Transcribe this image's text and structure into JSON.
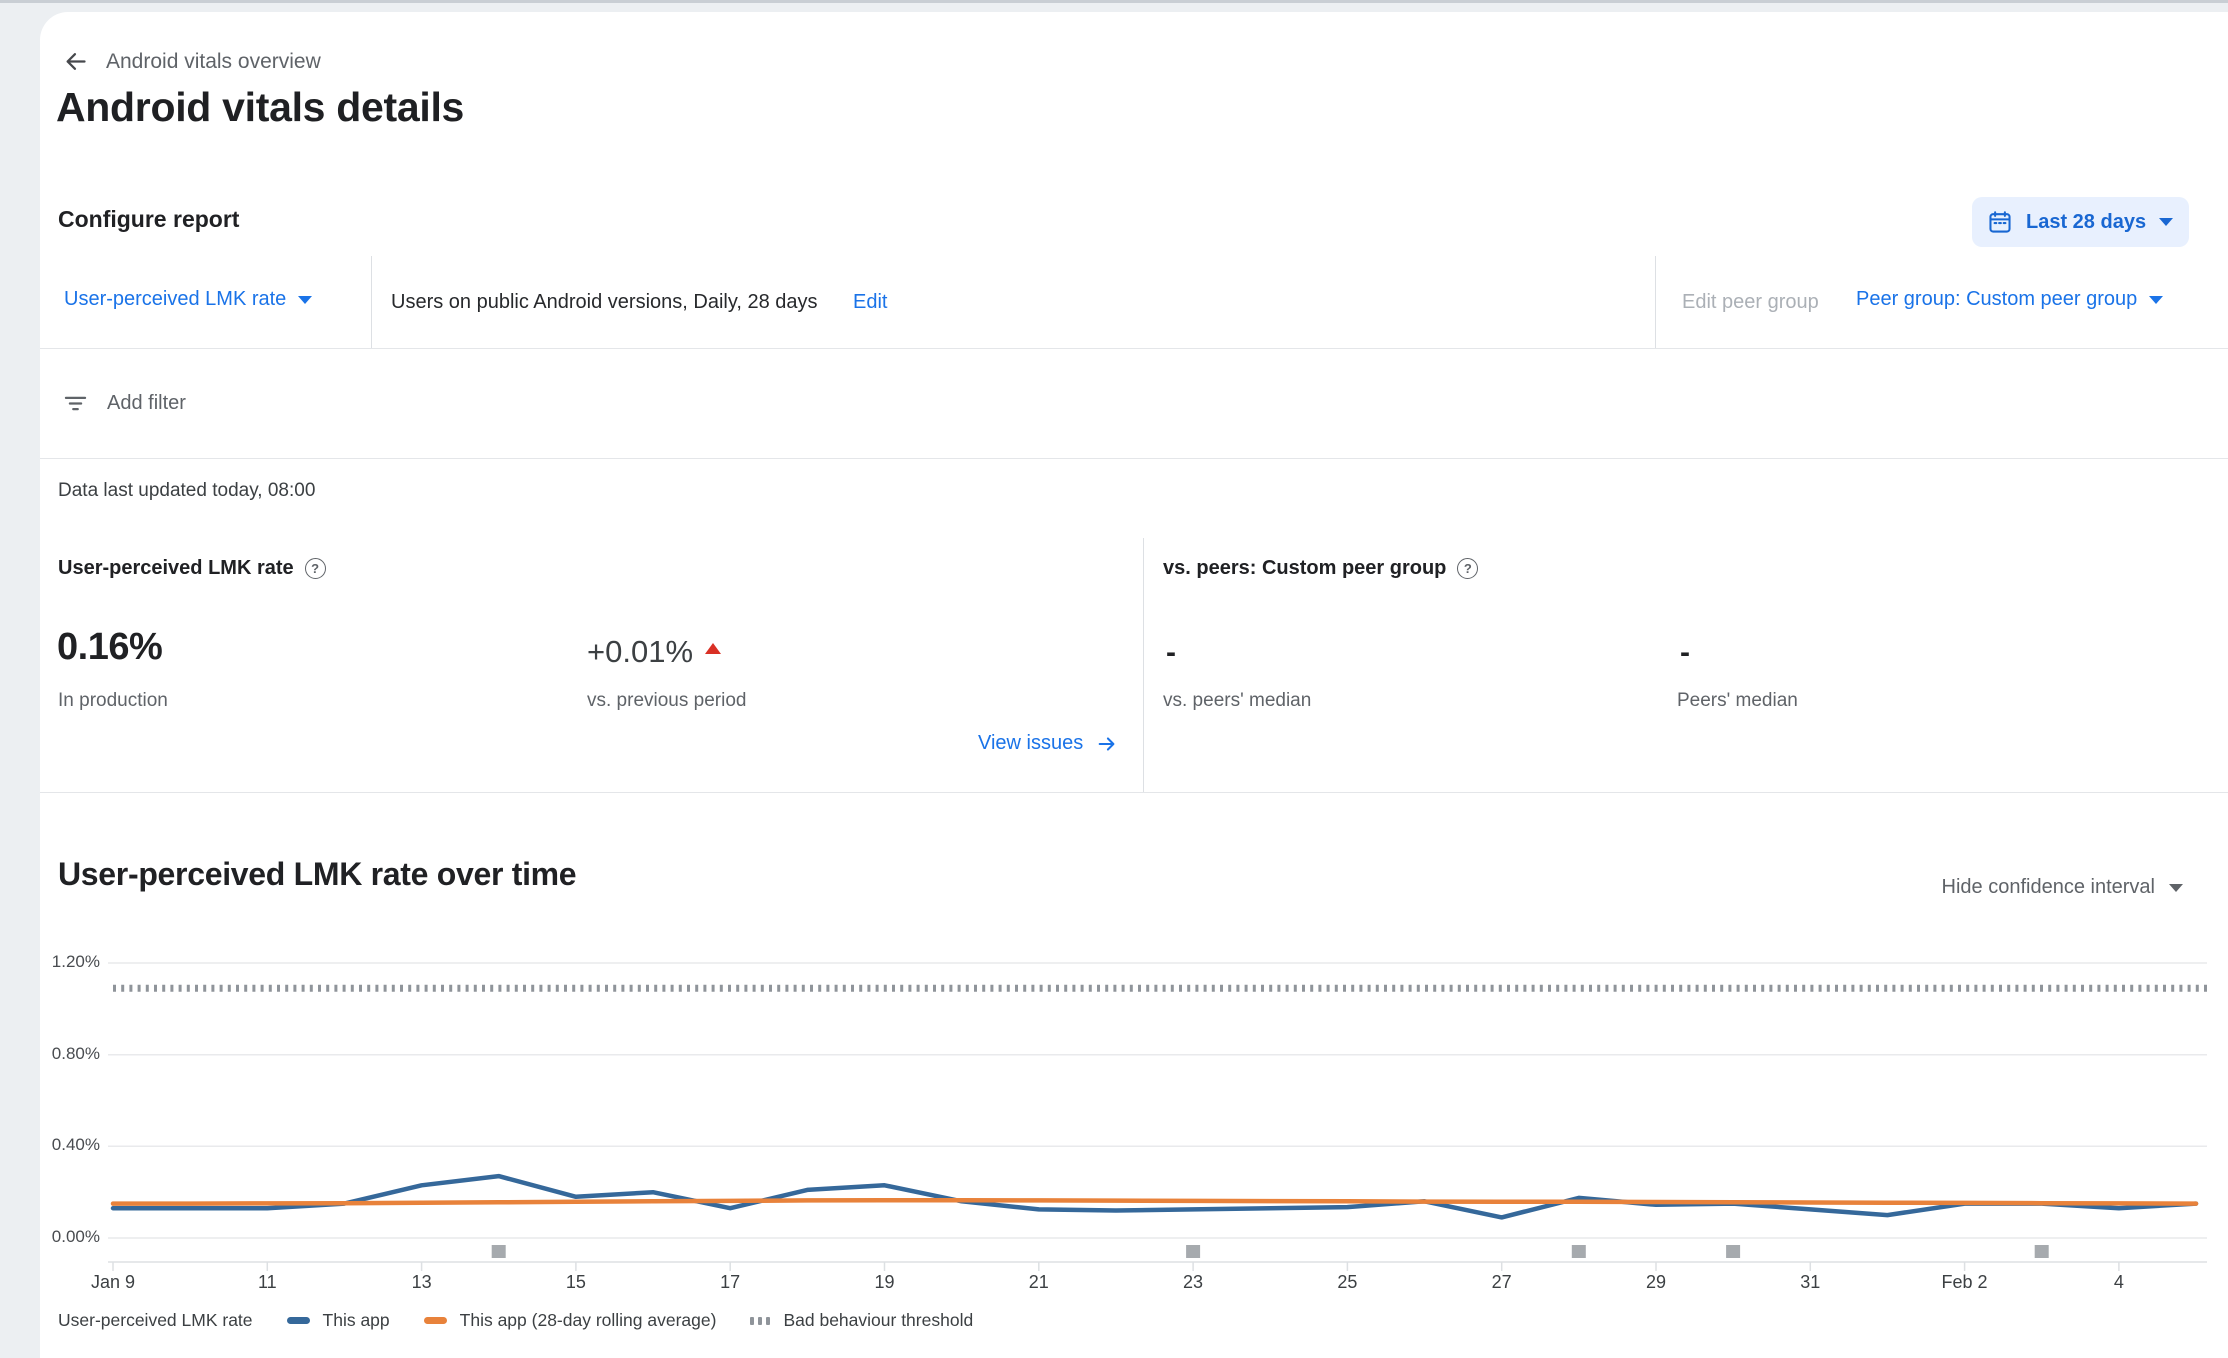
{
  "page": {
    "breadcrumb": "Android vitals overview",
    "title": "Android vitals details"
  },
  "configure": {
    "heading": "Configure report",
    "date_range_label": "Last 28 days",
    "metric_selector_label": "User-perceived LMK rate",
    "report_description": "Users on public Android versions, Daily, 28 days",
    "edit_label": "Edit",
    "edit_peer_group_label": "Edit peer group",
    "peer_group_selector_label": "Peer group: Custom peer group",
    "add_filter_label": "Add filter"
  },
  "status": {
    "last_updated": "Data last updated today, 08:00"
  },
  "summary": {
    "metric": {
      "heading": "User-perceived LMK rate",
      "value": "0.16%",
      "value_caption": "In production",
      "delta": "+0.01%",
      "delta_direction": "up",
      "delta_caption": "vs. previous period",
      "view_issues_label": "View issues"
    },
    "peers": {
      "heading": "vs. peers: Custom peer group",
      "vs_median_value": "-",
      "vs_median_caption": "vs. peers' median",
      "median_value": "-",
      "median_caption": "Peers' median"
    }
  },
  "chart_section": {
    "heading": "User-perceived LMK rate over time",
    "confidence_toggle_label": "Hide confidence interval"
  },
  "chart_data": {
    "type": "line",
    "title": "User-perceived LMK rate over time",
    "legend_title": "User-perceived LMK rate",
    "grid": true,
    "legend_position": "bottom",
    "ylim": [
      0,
      1.3
    ],
    "y_ticks": [
      {
        "label": "1.20%",
        "value": 1.2
      },
      {
        "label": "0.80%",
        "value": 0.8
      },
      {
        "label": "0.40%",
        "value": 0.4
      },
      {
        "label": "0.00%",
        "value": 0.0
      }
    ],
    "dates": [
      "Jan 9",
      "Jan 10",
      "Jan 11",
      "Jan 12",
      "Jan 13",
      "Jan 14",
      "Jan 15",
      "Jan 16",
      "Jan 17",
      "Jan 18",
      "Jan 19",
      "Jan 20",
      "Jan 21",
      "Jan 22",
      "Jan 23",
      "Jan 24",
      "Jan 25",
      "Jan 26",
      "Jan 27",
      "Jan 28",
      "Jan 29",
      "Jan 30",
      "Jan 31",
      "Feb 1",
      "Feb 2",
      "Feb 3",
      "Feb 4",
      "Feb 5"
    ],
    "x_tick_labels": [
      "Jan 9",
      "11",
      "13",
      "15",
      "17",
      "19",
      "21",
      "23",
      "25",
      "27",
      "29",
      "31",
      "Feb 2",
      "4"
    ],
    "x_tick_indices": [
      0,
      2,
      4,
      6,
      8,
      10,
      12,
      14,
      16,
      18,
      20,
      22,
      24,
      26
    ],
    "series": [
      {
        "name": "This app",
        "color": "#35689a",
        "unit": "%",
        "values": [
          0.13,
          0.13,
          0.13,
          0.15,
          0.23,
          0.27,
          0.18,
          0.2,
          0.13,
          0.21,
          0.23,
          0.16,
          0.125,
          0.12,
          0.125,
          0.13,
          0.135,
          0.16,
          0.09,
          0.175,
          0.145,
          0.15,
          0.125,
          0.1,
          0.15,
          0.15,
          0.13,
          0.15
        ]
      },
      {
        "name": "This app (28-day rolling average)",
        "color": "#e8823b",
        "unit": "%",
        "values": [
          0.15,
          0.15,
          0.151,
          0.152,
          0.154,
          0.156,
          0.158,
          0.16,
          0.162,
          0.164,
          0.165,
          0.165,
          0.164,
          0.163,
          0.162,
          0.161,
          0.16,
          0.159,
          0.158,
          0.158,
          0.157,
          0.156,
          0.155,
          0.154,
          0.153,
          0.152,
          0.151,
          0.15
        ]
      }
    ],
    "threshold": {
      "name": "Bad behaviour threshold",
      "value": 1.09,
      "unit": "%",
      "style": "dotted",
      "color": "#8f949a"
    },
    "annotations": {
      "marker_color": "#a6aaae",
      "marker_dates": [
        "Jan 14",
        "Jan 23",
        "Jan 28",
        "Jan 30",
        "Feb 3"
      ],
      "marker_day_indices": [
        5,
        14,
        19,
        21,
        25
      ]
    }
  },
  "colors": {
    "link_blue": "#1a73e8",
    "button_blue_bg": "#e8f0fe",
    "button_blue_text": "#1967d2",
    "delta_up_red": "#d93025",
    "series_this_app": "#35689a",
    "series_rolling_avg": "#e8823b",
    "threshold_gray": "#8f949a",
    "text_secondary": "#5f6368"
  }
}
